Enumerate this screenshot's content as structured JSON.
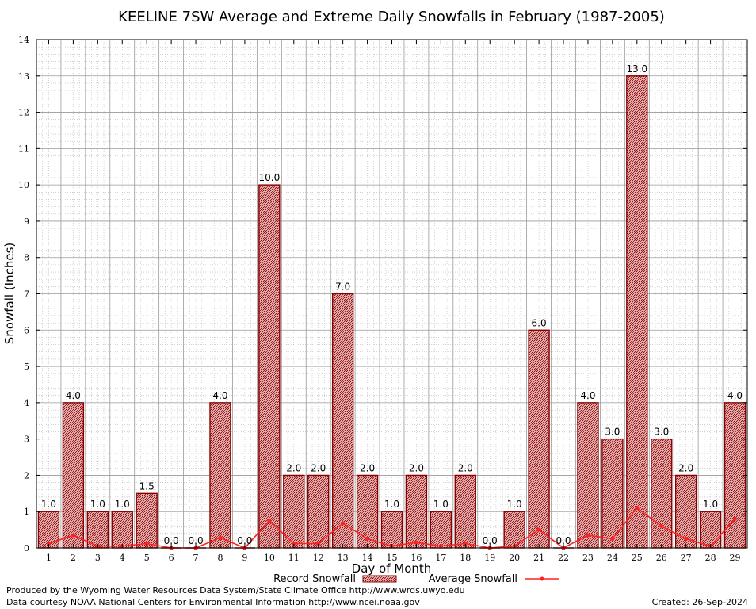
{
  "chart_data": {
    "type": "bar",
    "title": "KEELINE 7SW Average and Extreme Daily Snowfalls in February (1987-2005)",
    "xlabel": "Day of Month",
    "ylabel": "Snowfall (Inches)",
    "ylim": [
      0,
      14
    ],
    "yticks": [
      "0",
      "1",
      "2",
      "3",
      "4",
      "5",
      "6",
      "7",
      "8",
      "9",
      "10",
      "11",
      "12",
      "13",
      "14"
    ],
    "categories": [
      "1",
      "2",
      "3",
      "4",
      "5",
      "6",
      "7",
      "8",
      "9",
      "10",
      "11",
      "12",
      "13",
      "14",
      "15",
      "16",
      "17",
      "18",
      "19",
      "20",
      "21",
      "22",
      "23",
      "24",
      "25",
      "26",
      "27",
      "28",
      "29"
    ],
    "series": [
      {
        "name": "Record Snowfall",
        "type": "bar",
        "color": "#8b0000",
        "values": [
          1.0,
          4.0,
          1.0,
          1.0,
          1.5,
          0.0,
          0.0,
          4.0,
          0.0,
          10.0,
          2.0,
          2.0,
          7.0,
          2.0,
          1.0,
          2.0,
          1.0,
          2.0,
          0.0,
          1.0,
          6.0,
          0.0,
          4.0,
          3.0,
          13.0,
          3.0,
          2.0,
          1.0,
          4.0
        ],
        "labels": [
          "1.0",
          "4.0",
          "1.0",
          "1.0",
          "1.5",
          "0.0",
          "0.0",
          "4.0",
          "0.0",
          "10.0",
          "2.0",
          "2.0",
          "7.0",
          "2.0",
          "1.0",
          "2.0",
          "1.0",
          "2.0",
          "0.0",
          "1.0",
          "6.0",
          "0.0",
          "4.0",
          "3.0",
          "13.0",
          "3.0",
          "2.0",
          "1.0",
          "4.0"
        ]
      },
      {
        "name": "Average Snowfall",
        "type": "line",
        "color": "#ff2020",
        "values": [
          0.12,
          0.35,
          0.05,
          0.05,
          0.12,
          0.0,
          0.0,
          0.28,
          0.0,
          0.75,
          0.12,
          0.12,
          0.68,
          0.25,
          0.05,
          0.15,
          0.05,
          0.12,
          0.0,
          0.05,
          0.5,
          0.0,
          0.35,
          0.25,
          1.1,
          0.6,
          0.25,
          0.05,
          0.8
        ]
      }
    ],
    "grid": true,
    "legend": "bottom"
  },
  "footer": {
    "produced_by": "Produced by the Wyoming Water Resources Data System/State Climate Office http://www.wrds.uwyo.edu",
    "data_courtesy": "Data courtesy NOAA National Centers for Environmental Information http://www.ncei.noaa.gov",
    "created": "Created:  26-Sep-2024"
  }
}
